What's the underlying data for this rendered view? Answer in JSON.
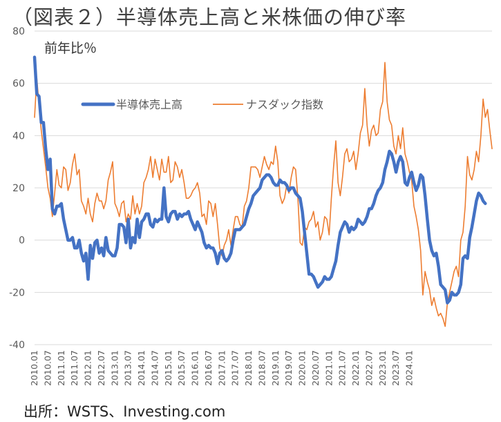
{
  "title": "（図表２）半導体売上高と米株価の伸び率",
  "source": "出所：WSTS、Investing.com",
  "chart_data": {
    "type": "line",
    "title": "（図表２）半導体売上高と米株価の伸び率",
    "ylabel": "前年比％",
    "ylim": [
      -40,
      80
    ],
    "yticks": [
      -40,
      -20,
      0,
      20,
      40,
      60,
      80
    ],
    "grid": "horizontal",
    "legend_position": "upper-center",
    "x_start": "2010.01",
    "x_step": "1 month",
    "xtick_labels": [
      "2010.01",
      "2010.07",
      "2011.01",
      "2011.07",
      "2012.01",
      "2012.07",
      "2013.01",
      "2013.07",
      "2014.01",
      "2014.07",
      "2015.01",
      "2015.07",
      "2016.01",
      "2016.07",
      "2017.01",
      "2017.07",
      "2018.01",
      "2018.07",
      "2019.01",
      "2019.07",
      "2020.01",
      "2020.07",
      "2021.01",
      "2021.07",
      "2022.01",
      "2022.07",
      "2023.01",
      "2023.07",
      "2024.01"
    ],
    "series": [
      {
        "name": "半導体売上高",
        "color": "#4472C4",
        "values": [
          70,
          56,
          55,
          45,
          45,
          35,
          27,
          31,
          12,
          10,
          13,
          13,
          14,
          8,
          4,
          0,
          0,
          1,
          -3,
          -3,
          0,
          -5,
          -8,
          -5,
          -15,
          -2,
          -7,
          -1,
          0,
          -5,
          -3,
          -6,
          1,
          -4,
          -5,
          -6,
          -6,
          -3,
          6,
          6,
          5,
          -1,
          8,
          -3,
          1,
          -1,
          8,
          1,
          7,
          8,
          10,
          10,
          6,
          5,
          8,
          7,
          8,
          8,
          20,
          9,
          7,
          10,
          11,
          11,
          8,
          10,
          9,
          10,
          10,
          11,
          8,
          6,
          4,
          7,
          5,
          3,
          -1,
          -3,
          -2,
          -3,
          -3,
          -5,
          -9,
          -5,
          -4,
          -7,
          -8,
          -7,
          -5,
          0,
          4,
          4,
          4,
          5,
          6,
          9,
          12,
          14,
          17,
          18,
          19,
          20,
          23,
          24,
          25,
          25,
          24,
          22,
          21,
          21,
          23,
          22,
          22,
          21,
          19,
          20,
          20,
          18,
          17,
          16,
          11,
          3,
          -5,
          -13,
          -13,
          -14,
          -16,
          -18,
          -17,
          -16,
          -14,
          -15,
          -15,
          -14,
          -11,
          -8,
          -2,
          3,
          5,
          7,
          6,
          3,
          5,
          4,
          5,
          8,
          7,
          6,
          7,
          9,
          12,
          12,
          14,
          17,
          19,
          20,
          22,
          27,
          30,
          34,
          33,
          30,
          26,
          30,
          32,
          30,
          22,
          21,
          24,
          26,
          22,
          19,
          21,
          25,
          24,
          17,
          8,
          0,
          -4,
          -6,
          -5,
          -10,
          -17,
          -18,
          -19,
          -24,
          -23,
          -20,
          -21,
          -21,
          -20,
          -17,
          -7,
          -6,
          -7,
          1,
          5,
          10,
          15,
          18,
          17,
          15,
          14
        ],
        "legend_label": "半導体売上高"
      },
      {
        "name": "ナスダック指数",
        "color": "#ED7D31",
        "values": [
          47,
          62,
          52,
          42,
          35,
          28,
          20,
          16,
          9,
          18,
          27,
          21,
          20,
          28,
          27,
          19,
          22,
          29,
          33,
          25,
          27,
          15,
          13,
          10,
          16,
          10,
          7,
          14,
          18,
          15,
          15,
          12,
          15,
          23,
          26,
          30,
          14,
          12,
          9,
          14,
          15,
          7,
          10,
          8,
          17,
          10,
          14,
          10,
          13,
          22,
          24,
          27,
          32,
          24,
          31,
          27,
          23,
          31,
          26,
          26,
          32,
          22,
          23,
          30,
          28,
          24,
          27,
          22,
          16,
          16,
          17,
          19,
          20,
          22,
          18,
          9,
          10,
          6,
          15,
          14,
          9,
          14,
          6,
          -3,
          -6,
          -2,
          0,
          4,
          -2,
          4,
          9,
          9,
          6,
          5,
          13,
          15,
          20,
          28,
          28,
          28,
          27,
          24,
          28,
          32,
          29,
          27,
          30,
          29,
          36,
          30,
          17,
          14,
          16,
          21,
          18,
          24,
          28,
          27,
          16,
          -1,
          -2,
          5,
          4,
          7,
          8,
          11,
          5,
          7,
          0,
          3,
          9,
          8,
          2,
          16,
          28,
          38,
          22,
          17,
          24,
          33,
          35,
          30,
          31,
          34,
          27,
          33,
          41,
          44,
          58,
          44,
          36,
          42,
          44,
          40,
          41,
          50,
          53,
          68,
          53,
          46,
          44,
          36,
          33,
          40,
          35,
          43,
          33,
          30,
          26,
          23,
          13,
          9,
          4,
          -4,
          -21,
          -12,
          -16,
          -19,
          -25,
          -22,
          -26,
          -29,
          -28,
          -30,
          -33,
          -24,
          -20,
          -16,
          -12,
          -10,
          -14,
          0,
          3,
          13,
          32,
          25,
          23,
          27,
          34,
          30,
          40,
          54,
          47,
          50,
          42,
          35
        ]
      }
    ]
  },
  "legend": {
    "semiconductor_label": "半導体売上高",
    "nasdaq_label": "ナスダック指数"
  }
}
